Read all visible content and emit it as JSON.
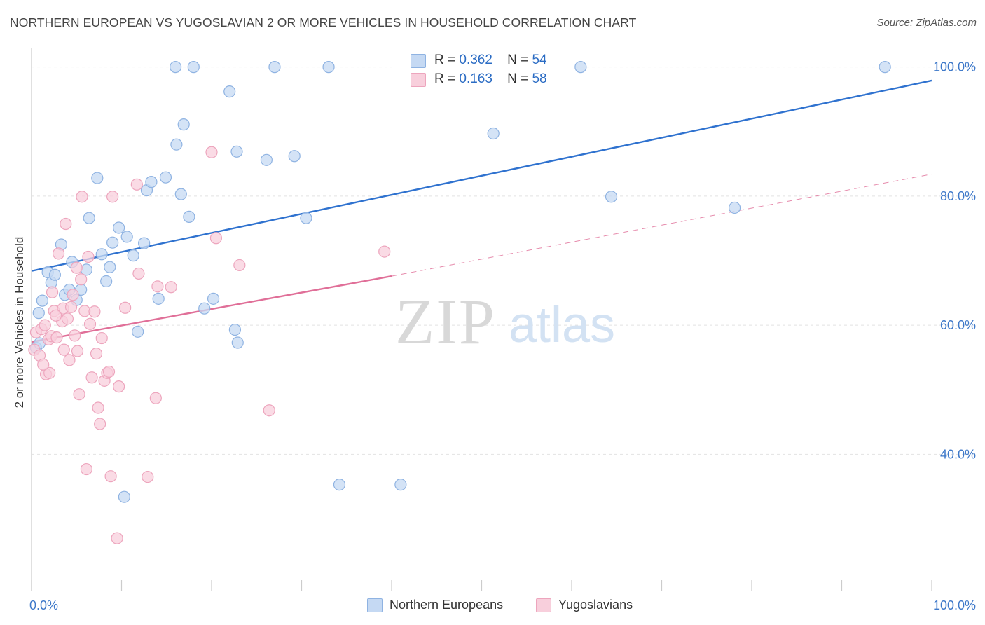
{
  "header": {
    "title": "NORTHERN EUROPEAN VS YUGOSLAVIAN 2 OR MORE VEHICLES IN HOUSEHOLD CORRELATION CHART",
    "source": "Source: ZipAtlas.com"
  },
  "legend_top": {
    "rows": [
      {
        "r_label": "R =",
        "r_value": "0.362",
        "n_label": "N =",
        "n_value": "54"
      },
      {
        "r_label": "R =",
        "r_value": "0.163",
        "n_label": "N =",
        "n_value": "58"
      }
    ]
  },
  "legend_bottom": {
    "items": [
      "Northern Europeans",
      "Yugoslavians"
    ]
  },
  "watermark": {
    "zip": "ZIP",
    "atlas": "atlas"
  },
  "colors": {
    "blue_fill": "#c5d9f3",
    "blue_stroke": "#8fb3e2",
    "blue_line": "#2f72cf",
    "pink_fill": "#f8cfdc",
    "pink_stroke": "#eda5bd",
    "pink_line": "#e06f98",
    "grid": "#e2e2e2",
    "axis_text": "#3d78c9"
  },
  "chart_data": {
    "type": "scatter",
    "title": "NORTHERN EUROPEAN VS YUGOSLAVIAN 2 OR MORE VEHICLES IN HOUSEHOLD CORRELATION CHART",
    "xlabel": "",
    "ylabel": "2 or more Vehicles in Household",
    "xlim": [
      0,
      100
    ],
    "ylim": [
      20.5,
      103
    ],
    "x_tick_labels": [
      {
        "value": 0,
        "label": "0.0%"
      },
      {
        "value": 100,
        "label": "100.0%"
      }
    ],
    "y_tick_labels": [
      {
        "value": 100,
        "label": "100.0%"
      },
      {
        "value": 80,
        "label": "80.0%"
      },
      {
        "value": 60,
        "label": "60.0%"
      },
      {
        "value": 40,
        "label": "40.0%"
      }
    ],
    "y_gridlines": [
      100,
      80,
      60,
      40
    ],
    "grid": true,
    "legend_position": "top-center",
    "series": [
      {
        "name": "Northern Europeans",
        "color": "#c5d9f3",
        "trend": {
          "x": [
            0,
            100
          ],
          "y": [
            68.4,
            97.9
          ],
          "style": "solid"
        },
        "points": [
          {
            "x": 0.8,
            "y": 61.9
          },
          {
            "x": 1.2,
            "y": 63.8
          },
          {
            "x": 1.8,
            "y": 68.2
          },
          {
            "x": 2.2,
            "y": 66.6
          },
          {
            "x": 2.6,
            "y": 67.8
          },
          {
            "x": 3.3,
            "y": 72.5
          },
          {
            "x": 3.7,
            "y": 64.7
          },
          {
            "x": 4.2,
            "y": 65.5
          },
          {
            "x": 4.5,
            "y": 69.8
          },
          {
            "x": 5.0,
            "y": 63.9
          },
          {
            "x": 5.5,
            "y": 65.5
          },
          {
            "x": 6.1,
            "y": 68.6
          },
          {
            "x": 6.4,
            "y": 76.6
          },
          {
            "x": 7.3,
            "y": 82.8
          },
          {
            "x": 7.8,
            "y": 71.0
          },
          {
            "x": 8.3,
            "y": 66.8
          },
          {
            "x": 8.7,
            "y": 69.0
          },
          {
            "x": 9.0,
            "y": 72.8
          },
          {
            "x": 9.7,
            "y": 75.1
          },
          {
            "x": 10.6,
            "y": 73.7
          },
          {
            "x": 11.3,
            "y": 70.8
          },
          {
            "x": 11.8,
            "y": 59.0
          },
          {
            "x": 12.5,
            "y": 72.7
          },
          {
            "x": 12.8,
            "y": 80.9
          },
          {
            "x": 13.3,
            "y": 82.2
          },
          {
            "x": 14.1,
            "y": 64.1
          },
          {
            "x": 14.9,
            "y": 82.9
          },
          {
            "x": 16.0,
            "y": 100.0
          },
          {
            "x": 16.1,
            "y": 88.0
          },
          {
            "x": 16.6,
            "y": 80.3
          },
          {
            "x": 16.9,
            "y": 91.1
          },
          {
            "x": 17.5,
            "y": 76.8
          },
          {
            "x": 18.0,
            "y": 100.0
          },
          {
            "x": 19.2,
            "y": 62.6
          },
          {
            "x": 20.2,
            "y": 64.1
          },
          {
            "x": 22.0,
            "y": 96.2
          },
          {
            "x": 22.6,
            "y": 59.3
          },
          {
            "x": 22.9,
            "y": 57.3
          },
          {
            "x": 22.8,
            "y": 86.9
          },
          {
            "x": 26.1,
            "y": 85.6
          },
          {
            "x": 27.0,
            "y": 100.0
          },
          {
            "x": 29.2,
            "y": 86.2
          },
          {
            "x": 30.5,
            "y": 76.6
          },
          {
            "x": 33.0,
            "y": 100.0
          },
          {
            "x": 34.2,
            "y": 35.3
          },
          {
            "x": 10.3,
            "y": 33.4
          },
          {
            "x": 41.0,
            "y": 35.3
          },
          {
            "x": 51.3,
            "y": 89.7
          },
          {
            "x": 61.0,
            "y": 100.0
          },
          {
            "x": 64.4,
            "y": 79.9
          },
          {
            "x": 78.1,
            "y": 78.2
          },
          {
            "x": 94.8,
            "y": 100.0
          },
          {
            "x": 0.5,
            "y": 56.5
          },
          {
            "x": 0.9,
            "y": 57.2
          }
        ]
      },
      {
        "name": "Yugoslavians",
        "color": "#f8cfdc",
        "trend": {
          "x": [
            0,
            40
          ],
          "y": [
            57.4,
            67.6
          ],
          "style": "solid",
          "extended_to": {
            "x": 100,
            "y": 83.4,
            "style": "dashed"
          }
        },
        "points": [
          {
            "x": 0.3,
            "y": 56.2
          },
          {
            "x": 0.5,
            "y": 58.9
          },
          {
            "x": 0.9,
            "y": 55.3
          },
          {
            "x": 1.1,
            "y": 59.4
          },
          {
            "x": 1.5,
            "y": 60.0
          },
          {
            "x": 1.6,
            "y": 52.4
          },
          {
            "x": 1.9,
            "y": 57.8
          },
          {
            "x": 2.0,
            "y": 52.6
          },
          {
            "x": 2.2,
            "y": 58.3
          },
          {
            "x": 2.3,
            "y": 65.1
          },
          {
            "x": 2.5,
            "y": 62.2
          },
          {
            "x": 2.8,
            "y": 58.1
          },
          {
            "x": 3.0,
            "y": 71.1
          },
          {
            "x": 3.4,
            "y": 60.6
          },
          {
            "x": 3.5,
            "y": 62.6
          },
          {
            "x": 3.6,
            "y": 56.2
          },
          {
            "x": 3.8,
            "y": 75.7
          },
          {
            "x": 4.0,
            "y": 61.0
          },
          {
            "x": 4.2,
            "y": 54.6
          },
          {
            "x": 4.4,
            "y": 62.8
          },
          {
            "x": 4.6,
            "y": 64.7
          },
          {
            "x": 4.8,
            "y": 58.4
          },
          {
            "x": 5.0,
            "y": 68.9
          },
          {
            "x": 5.1,
            "y": 56.0
          },
          {
            "x": 5.3,
            "y": 49.3
          },
          {
            "x": 5.5,
            "y": 67.1
          },
          {
            "x": 5.6,
            "y": 79.9
          },
          {
            "x": 5.9,
            "y": 62.2
          },
          {
            "x": 6.1,
            "y": 37.7
          },
          {
            "x": 6.3,
            "y": 70.6
          },
          {
            "x": 6.5,
            "y": 60.2
          },
          {
            "x": 6.7,
            "y": 51.9
          },
          {
            "x": 7.0,
            "y": 62.1
          },
          {
            "x": 7.2,
            "y": 55.6
          },
          {
            "x": 7.4,
            "y": 47.2
          },
          {
            "x": 7.6,
            "y": 44.7
          },
          {
            "x": 7.8,
            "y": 58.0
          },
          {
            "x": 8.1,
            "y": 51.4
          },
          {
            "x": 8.4,
            "y": 52.6
          },
          {
            "x": 8.6,
            "y": 52.8
          },
          {
            "x": 8.8,
            "y": 36.6
          },
          {
            "x": 9.0,
            "y": 79.9
          },
          {
            "x": 9.5,
            "y": 27.0
          },
          {
            "x": 9.7,
            "y": 50.5
          },
          {
            "x": 10.4,
            "y": 62.7
          },
          {
            "x": 11.7,
            "y": 81.8
          },
          {
            "x": 11.9,
            "y": 68.0
          },
          {
            "x": 12.9,
            "y": 36.5
          },
          {
            "x": 13.8,
            "y": 48.7
          },
          {
            "x": 14.0,
            "y": 66.0
          },
          {
            "x": 15.5,
            "y": 65.9
          },
          {
            "x": 20.0,
            "y": 86.8
          },
          {
            "x": 20.5,
            "y": 73.5
          },
          {
            "x": 23.1,
            "y": 69.3
          },
          {
            "x": 26.4,
            "y": 46.8
          },
          {
            "x": 39.2,
            "y": 71.4
          },
          {
            "x": 1.3,
            "y": 53.9
          },
          {
            "x": 2.7,
            "y": 61.5
          }
        ]
      }
    ]
  }
}
